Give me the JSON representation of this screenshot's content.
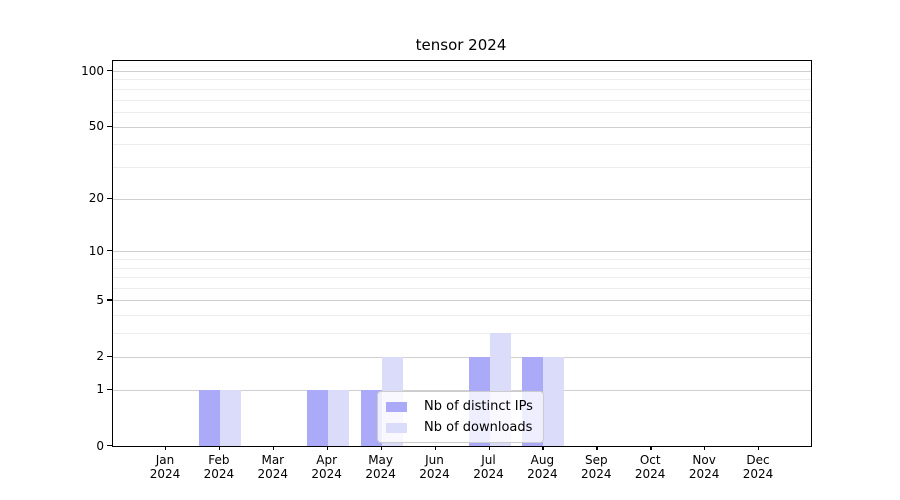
{
  "chart_data": {
    "type": "bar",
    "title": "tensor 2024",
    "categories": [
      "Jan 2024",
      "Feb 2024",
      "Mar 2024",
      "Apr 2024",
      "May 2024",
      "Jun 2024",
      "Jul 2024",
      "Aug 2024",
      "Sep 2024",
      "Oct 2024",
      "Nov 2024",
      "Dec 2024"
    ],
    "series": [
      {
        "name": "Nb of distinct IPs",
        "color": "#aaaaf8",
        "values": [
          0,
          1,
          0,
          1,
          1,
          0,
          2,
          2,
          0,
          0,
          0,
          0
        ]
      },
      {
        "name": "Nb of downloads",
        "color": "#dbdbfa",
        "values": [
          0,
          1,
          0,
          1,
          2,
          0,
          3,
          2,
          0,
          0,
          0,
          0
        ]
      }
    ],
    "yscale": "log1p",
    "ylim": [
      0,
      113
    ],
    "y_ticks": [
      0,
      1,
      2,
      5,
      10,
      20,
      50,
      100
    ],
    "y_minor_gridlines": [
      3,
      4,
      6,
      7,
      8,
      9,
      30,
      40,
      60,
      70,
      80,
      90
    ],
    "grid": true,
    "grid_major_color": "#cfcfcf",
    "grid_minor_color": "#ededed",
    "legend_position": "lower center inside",
    "xlabel": "",
    "ylabel": ""
  }
}
